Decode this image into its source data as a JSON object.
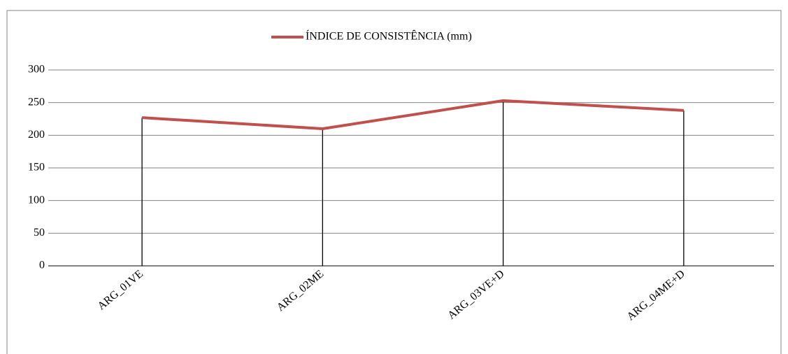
{
  "chart_data": {
    "type": "line",
    "categories": [
      "ARG_01VE",
      "ARG_02ME",
      "ARG_03VE+D",
      "ARG_04ME+D"
    ],
    "series": [
      {
        "name": "ÍNDICE DE CONSISTÊNCIA (mm)",
        "color": "#c0504d",
        "values": [
          227,
          210,
          253,
          238
        ]
      }
    ],
    "ylim": [
      0,
      300
    ],
    "yticks": [
      0,
      50,
      100,
      150,
      200,
      250,
      300
    ],
    "grid": true,
    "drop_lines": true,
    "legend": "top"
  }
}
